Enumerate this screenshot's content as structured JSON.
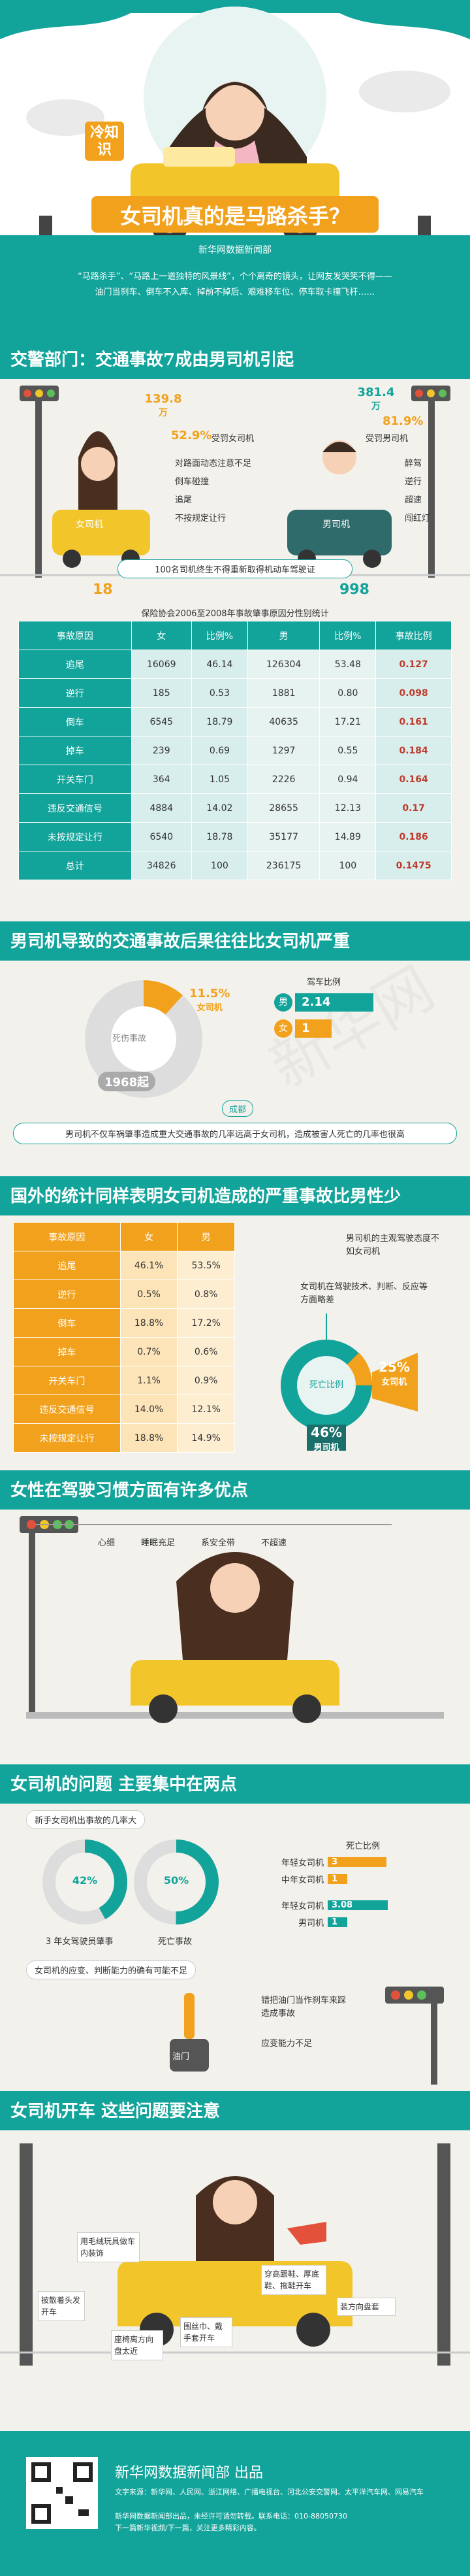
{
  "hero": {
    "tag": "冷知识",
    "title": "女司机真的是马路杀手？",
    "org": "新华网数据新闻部",
    "intro1": "“马路杀手”、“马路上一道独特的风景线”，个个离奇的镜头，让网友发哭笑不得——",
    "intro2": "油门当刹车、倒车不入库、掉前不掉后、艰难移车位、停车取卡撞飞杆……"
  },
  "s1": {
    "title": "交警部门：交通事故7成由男司机引起",
    "female_count": "139.8",
    "female_unit": "万",
    "female_pct": "52.9%",
    "female_label": "受罚女司机",
    "female_label_car": "女司机",
    "female_items": [
      "对路面动态注意不足",
      "倒车碰撞",
      "追尾",
      "不按规定让行"
    ],
    "male_count": "381.4",
    "male_unit": "万",
    "male_pct": "81.9%",
    "male_label": "受罚男司机",
    "male_label_car": "男司机",
    "male_items": [
      "醉驾",
      "逆行",
      "超速",
      "闯红灯"
    ],
    "note": "100名司机终生不得重新取得机动车驾驶证",
    "female_num": "18",
    "male_num": "998"
  },
  "t1": {
    "caption": "保险协会2006至2008年事故肇事原因分性别统计",
    "headers": [
      "事故原因",
      "女",
      "比例%",
      "男",
      "比例%",
      "事故比例"
    ],
    "rows": [
      [
        "追尾",
        "16069",
        "46.14",
        "126304",
        "53.48",
        "0.127"
      ],
      [
        "逆行",
        "185",
        "0.53",
        "1881",
        "0.80",
        "0.098"
      ],
      [
        "倒车",
        "6545",
        "18.79",
        "40635",
        "17.21",
        "0.161"
      ],
      [
        "掉车",
        "239",
        "0.69",
        "1297",
        "0.55",
        "0.184"
      ],
      [
        "开关车门",
        "364",
        "1.05",
        "2226",
        "0.94",
        "0.164"
      ],
      [
        "违反交通信号",
        "4884",
        "14.02",
        "28655",
        "12.13",
        "0.17"
      ],
      [
        "未按规定让行",
        "6540",
        "18.78",
        "35177",
        "14.89",
        "0.186"
      ],
      [
        "总计",
        "34826",
        "100",
        "236175",
        "100",
        "0.1475"
      ]
    ]
  },
  "s2": {
    "title": "男司机导致的交通事故后果往往比女司机严重",
    "death_label": "死伤事故",
    "female_pct": "11.5%",
    "female_word": "女司机",
    "male_count": "1968起",
    "ratio_title": "驾车比例",
    "male_tag": "男",
    "male_ratio": "2.14",
    "female_tag": "女",
    "female_ratio": "1",
    "cost_label": "成都",
    "note": "男司机不仅车祸肇事造成重大交通事故的几率远高于女司机，造成被害人死亡的几率也很高"
  },
  "s3": {
    "title": "国外的统计同样表明女司机造成的严重事故比男性少",
    "headers": [
      "事故原因",
      "女",
      "男"
    ],
    "rows": [
      [
        "追尾",
        "46.1%",
        "53.5%"
      ],
      [
        "逆行",
        "0.5%",
        "0.8%"
      ],
      [
        "倒车",
        "18.8%",
        "17.2%"
      ],
      [
        "掉车",
        "0.7%",
        "0.6%"
      ],
      [
        "开关车门",
        "1.1%",
        "0.9%"
      ],
      [
        "违反交通信号",
        "14.0%",
        "12.1%"
      ],
      [
        "未按规定让行",
        "18.8%",
        "14.9%"
      ]
    ],
    "note1": "男司机的主观驾驶态度不如女司机",
    "note2": "女司机在驾驶技术、判断、反应等方面略差",
    "death_label": "死亡比例",
    "female_pct": "25%",
    "female_word": "女司机",
    "male_pct": "46%",
    "male_word": "男司机"
  },
  "s4": {
    "title": "女性在驾驶习惯方面有许多优点",
    "items": [
      "心细",
      "睡眠充足",
      "系安全带",
      "不超速"
    ]
  },
  "s5": {
    "title": "女司机的问题 主要集中在两点",
    "label1": "新手女司机出事故的几率大",
    "pct1": "42%",
    "pct2": "50%",
    "cap1": "3 年女驾驶员肇事",
    "cap2": "死亡事故",
    "ratio_title": "死亡比例",
    "r1": "年轻女司机",
    "v1": "3",
    "r2": "中年女司机",
    "v2": "1",
    "r3": "年轻女司机",
    "v3": "3.08",
    "r4": "男司机",
    "v4": "1",
    "label2": "女司机的应变、判断能力的确有可能不足",
    "gear": "油门",
    "g1": "错把油门当作刹车来踩造成事故",
    "g2": "应变能力不足"
  },
  "s6": {
    "title": "女司机开车 这些问题要注意",
    "items": [
      "用毛绒玩具做车内装饰",
      "披散着头发开车",
      "座椅离方向盘太近",
      "围丝巾、戴手套开车",
      "穿高跟鞋、厚底鞋、拖鞋开车",
      "装方向盘套"
    ]
  },
  "footer": {
    "brand": "新华网数据新闻部",
    "suffix": "出品",
    "sources": "文字来源：新华网、人民网、浙江网络、广播电视台、河北公安交警网、太平洋汽车网、网易汽车",
    "line2": "新华网数据新闻部出品，未经许可请勿转载。联系电话：010-88050730",
    "line3": "下一篇新华视频/下一篇，关注更多精彩内容。"
  },
  "colors": {
    "teal": "#12a39a",
    "orange": "#f2a11c",
    "dark": "#1b6f6b"
  }
}
